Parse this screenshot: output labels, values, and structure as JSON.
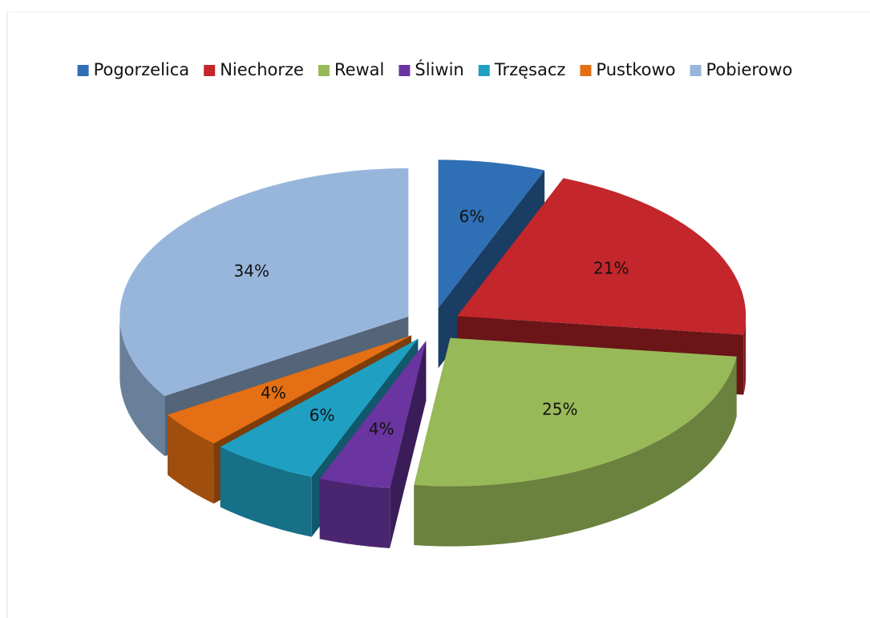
{
  "chart_data": {
    "type": "pie3d",
    "categories": [
      "Pogorzelica",
      "Niechorze",
      "Rewal",
      "Śliwin",
      "Trzęsacz",
      "Pustkowo",
      "Pobierowo"
    ],
    "values": [
      6,
      21,
      25,
      4,
      6,
      4,
      34
    ],
    "value_labels": [
      "6%",
      "21%",
      "25%",
      "4%",
      "6%",
      "4%",
      "34%"
    ],
    "colors": [
      "#2f6fb5",
      "#c3262b",
      "#98b957",
      "#6a35a0",
      "#1fa0c2",
      "#e46f14",
      "#98b6dc"
    ],
    "legend": "top"
  }
}
